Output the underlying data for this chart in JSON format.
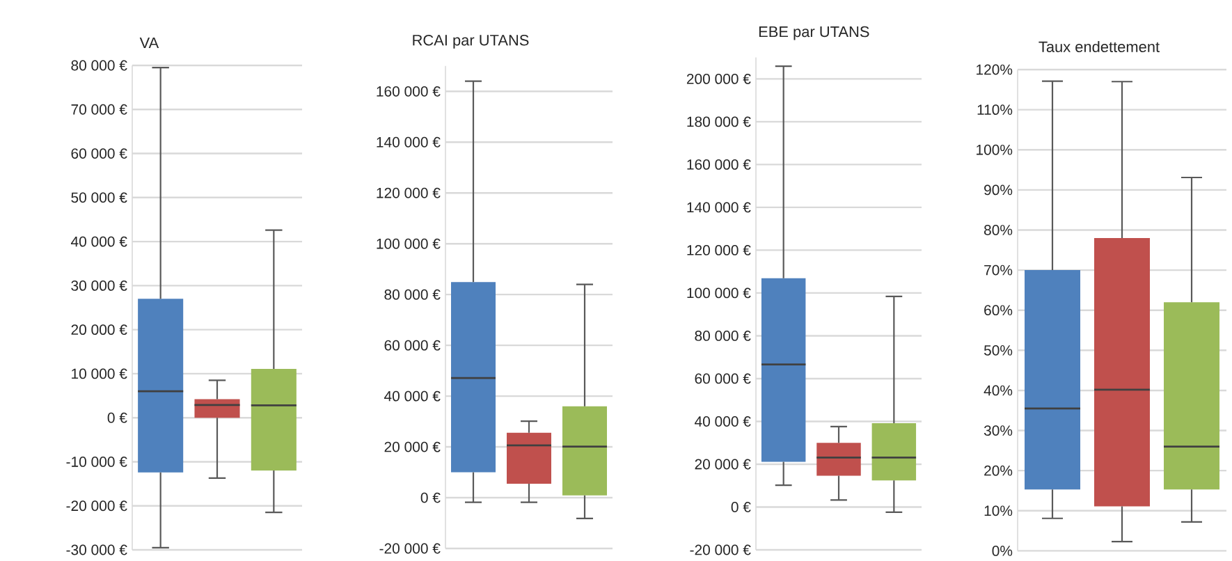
{
  "chart_data": [
    {
      "type": "box",
      "title": "VA",
      "categories": [
        null,
        null,
        null
      ],
      "colors": [
        "#4f81bd",
        "#c0504d",
        "#9bbb59"
      ],
      "grid": "y",
      "ylim": [
        -30000,
        80000
      ],
      "yticks": [
        {
          "value": -30000,
          "label": "-30 000 €"
        },
        {
          "value": -20000,
          "label": "-20 000 €"
        },
        {
          "value": -10000,
          "label": "-10 000 €"
        },
        {
          "value": 0,
          "label": "0 €"
        },
        {
          "value": 10000,
          "label": "10 000 €"
        },
        {
          "value": 20000,
          "label": "20 000 €"
        },
        {
          "value": 30000,
          "label": "30 000 €"
        },
        {
          "value": 40000,
          "label": "40 000 €"
        },
        {
          "value": 50000,
          "label": "50 000 €"
        },
        {
          "value": 60000,
          "label": "60 000 €"
        },
        {
          "value": 70000,
          "label": "70 000 €"
        },
        {
          "value": 80000,
          "label": "80 000 €"
        }
      ],
      "boxes": [
        {
          "low": -29500,
          "q1": -12400,
          "median": 6000,
          "q3": 27000,
          "high": 79500
        },
        {
          "low": -13700,
          "q1": 0,
          "median": 2900,
          "q3": 4200,
          "high": 8500
        },
        {
          "low": -21500,
          "q1": -12000,
          "median": 2800,
          "q3": 11100,
          "high": 42600
        }
      ]
    },
    {
      "type": "box",
      "title": "RCAI par UTANS",
      "categories": [
        null,
        null,
        null
      ],
      "colors": [
        "#4f81bd",
        "#c0504d",
        "#9bbb59"
      ],
      "grid": "y",
      "ylim": [
        -20000,
        170000
      ],
      "yticks": [
        {
          "value": -20000,
          "label": "-20 000 €"
        },
        {
          "value": 0,
          "label": "0 €"
        },
        {
          "value": 20000,
          "label": "20 000 €"
        },
        {
          "value": 40000,
          "label": "40 000 €"
        },
        {
          "value": 60000,
          "label": "60 000 €"
        },
        {
          "value": 80000,
          "label": "80 000 €"
        },
        {
          "value": 100000,
          "label": "100 000 €"
        },
        {
          "value": 120000,
          "label": "120 000 €"
        },
        {
          "value": 140000,
          "label": "140 000 €"
        },
        {
          "value": 160000,
          "label": "160 000 €"
        }
      ],
      "boxes": [
        {
          "low": -1800,
          "q1": 10000,
          "median": 47100,
          "q3": 84900,
          "high": 164000
        },
        {
          "low": -1800,
          "q1": 5500,
          "median": 20600,
          "q3": 25600,
          "high": 30100
        },
        {
          "low": -8200,
          "q1": 900,
          "median": 20100,
          "q3": 36000,
          "high": 84000
        }
      ]
    },
    {
      "type": "box",
      "title": "EBE par UTANS",
      "categories": [
        null,
        null,
        null
      ],
      "colors": [
        "#4f81bd",
        "#c0504d",
        "#9bbb59"
      ],
      "grid": "y",
      "ylim": [
        -20000,
        210000
      ],
      "yticks": [
        {
          "value": -20000,
          "label": "-20 000 €"
        },
        {
          "value": 0,
          "label": "0 €"
        },
        {
          "value": 20000,
          "label": "20 000 €"
        },
        {
          "value": 40000,
          "label": "40 000 €"
        },
        {
          "value": 60000,
          "label": "60 000 €"
        },
        {
          "value": 80000,
          "label": "80 000 €"
        },
        {
          "value": 100000,
          "label": "100 000 €"
        },
        {
          "value": 120000,
          "label": "120 000 €"
        },
        {
          "value": 140000,
          "label": "140 000 €"
        },
        {
          "value": 160000,
          "label": "160 000 €"
        },
        {
          "value": 180000,
          "label": "180 000 €"
        },
        {
          "value": 200000,
          "label": "200 000 €"
        }
      ],
      "boxes": [
        {
          "low": 10200,
          "q1": 21100,
          "median": 66600,
          "q3": 106900,
          "high": 205900
        },
        {
          "low": 3300,
          "q1": 14600,
          "median": 23100,
          "q3": 30000,
          "high": 37600
        },
        {
          "low": -2400,
          "q1": 12400,
          "median": 23100,
          "q3": 39200,
          "high": 98400
        }
      ]
    },
    {
      "type": "box",
      "title": "Taux endettement",
      "categories": [
        null,
        null,
        null
      ],
      "colors": [
        "#4f81bd",
        "#c0504d",
        "#9bbb59"
      ],
      "grid": "y",
      "ylim": [
        0,
        120
      ],
      "yticks": [
        {
          "value": 0,
          "label": "0%"
        },
        {
          "value": 10,
          "label": "10%"
        },
        {
          "value": 20,
          "label": "20%"
        },
        {
          "value": 30,
          "label": "30%"
        },
        {
          "value": 40,
          "label": "40%"
        },
        {
          "value": 50,
          "label": "50%"
        },
        {
          "value": 60,
          "label": "60%"
        },
        {
          "value": 70,
          "label": "70%"
        },
        {
          "value": 80,
          "label": "80%"
        },
        {
          "value": 90,
          "label": "90%"
        },
        {
          "value": 100,
          "label": "100%"
        },
        {
          "value": 110,
          "label": "110%"
        },
        {
          "value": 120,
          "label": "120%"
        }
      ],
      "boxes": [
        {
          "low": 8.1,
          "q1": 15.3,
          "median": 35.5,
          "q3": 70,
          "high": 117.1
        },
        {
          "low": 2.3,
          "q1": 11.1,
          "median": 40.2,
          "q3": 78,
          "high": 117
        },
        {
          "low": 7.2,
          "q1": 15.3,
          "median": 26,
          "q3": 62,
          "high": 93.1
        }
      ]
    }
  ]
}
